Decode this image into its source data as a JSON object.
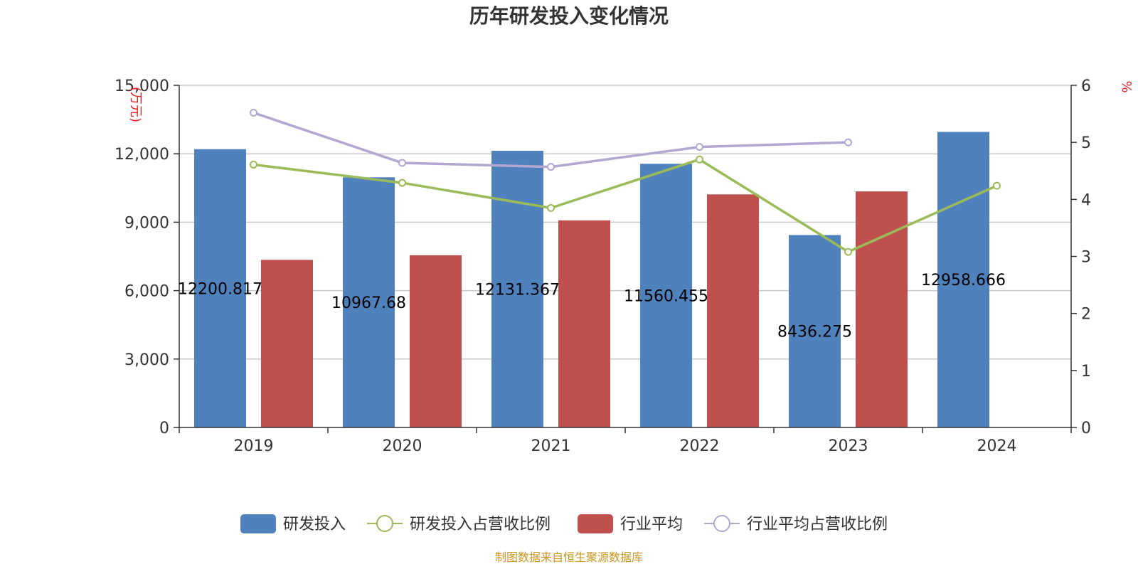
{
  "chart_data": {
    "type": "bar",
    "title": "历年研发投入变化情况",
    "categories": [
      "2019",
      "2020",
      "2021",
      "2022",
      "2023",
      "2024"
    ],
    "y_left": {
      "unit": "万元",
      "range": [
        0,
        15000
      ],
      "ticks": [
        "0",
        "3,000",
        "6,000",
        "9,000",
        "12,000",
        "15,000"
      ]
    },
    "y_right": {
      "unit": "%",
      "range": [
        0,
        6
      ],
      "ticks": [
        "0",
        "1",
        "2",
        "3",
        "4",
        "5",
        "6"
      ]
    },
    "series": [
      {
        "name": "研发投入",
        "kind": "bar",
        "axis": "left",
        "color": "#4f81bd",
        "values": [
          12200.817,
          10967.68,
          12131.367,
          11560.455,
          8436.275,
          12958.666
        ],
        "labels": [
          "12200.817",
          "10967.68",
          "12131.367",
          "11560.455",
          "8436.275",
          "12958.666"
        ]
      },
      {
        "name": "行业平均",
        "kind": "bar",
        "axis": "left",
        "color": "#c0504d",
        "values": [
          7350,
          7550,
          9080,
          10220,
          10350,
          null
        ]
      },
      {
        "name": "研发投入占营收比例",
        "kind": "line",
        "axis": "right",
        "color": "#9bbb59",
        "values": [
          4.61,
          4.29,
          3.85,
          4.7,
          3.08,
          4.24
        ]
      },
      {
        "name": "行业平均占营收比例",
        "kind": "line",
        "axis": "right",
        "color": "#b3a7d1",
        "values": [
          5.52,
          4.64,
          4.57,
          4.92,
          5.0,
          null
        ]
      }
    ],
    "legend_order": [
      "研发投入",
      "研发投入占营收比例",
      "行业平均",
      "行业平均占营收比例"
    ],
    "legend_position": "bottom",
    "grid": true
  },
  "source_note": "制图数据来自恒生聚源数据库"
}
